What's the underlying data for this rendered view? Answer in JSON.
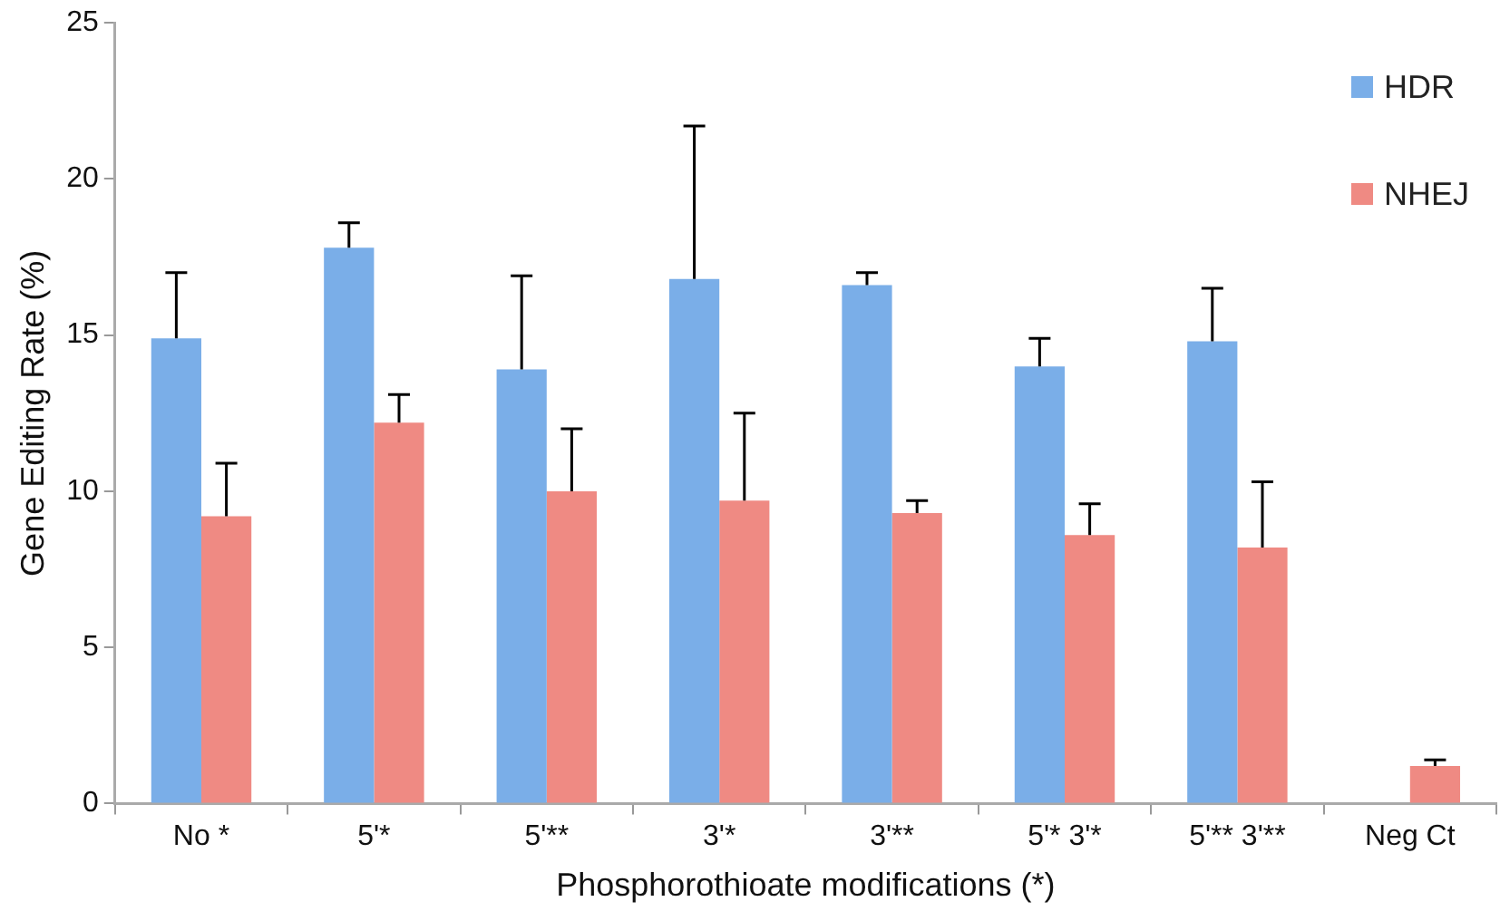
{
  "chart_data": {
    "type": "bar",
    "xlabel": "Phosphorothioate modifications (*)",
    "ylabel": "Gene Editing Rate (%)",
    "categories": [
      "No *",
      "5'*",
      "5'**",
      "3'*",
      "3'**",
      "5'* 3'*",
      "5'** 3'**",
      "Neg Ct"
    ],
    "series": [
      {
        "name": "HDR",
        "color": "#7aaee8",
        "values": [
          14.9,
          17.8,
          13.9,
          16.8,
          16.6,
          14.0,
          14.8,
          0.0
        ],
        "errors": [
          [
            14.9,
            17.0
          ],
          [
            17.8,
            18.6
          ],
          [
            13.9,
            16.9
          ],
          [
            16.8,
            21.7
          ],
          [
            16.6,
            17.0
          ],
          [
            14.0,
            14.9
          ],
          [
            14.8,
            16.5
          ],
          null
        ]
      },
      {
        "name": "NHEJ",
        "color": "#ef8a83",
        "values": [
          9.2,
          12.2,
          10.0,
          9.7,
          9.3,
          8.6,
          8.2,
          1.2
        ],
        "errors": [
          [
            9.2,
            10.9
          ],
          [
            12.2,
            13.1
          ],
          [
            10.0,
            12.0
          ],
          [
            9.7,
            12.5
          ],
          [
            9.3,
            9.7
          ],
          [
            8.6,
            9.6
          ],
          [
            8.2,
            10.3
          ],
          [
            1.2,
            1.4
          ]
        ]
      }
    ],
    "ylim": [
      0,
      25
    ],
    "yticks": [
      0,
      5,
      10,
      15,
      20,
      25
    ],
    "grid": false,
    "legend": "top right"
  }
}
